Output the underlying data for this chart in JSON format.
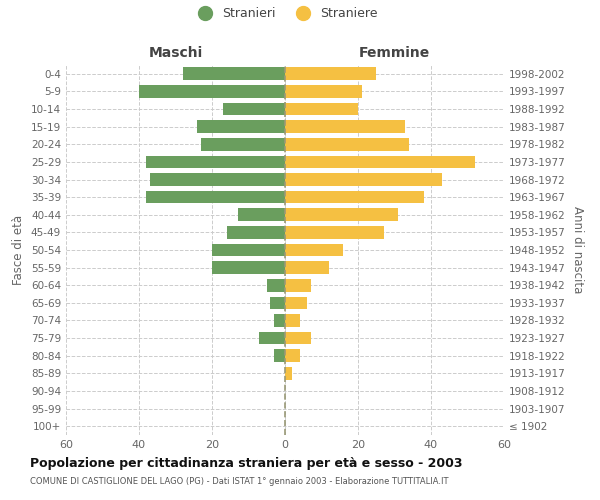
{
  "age_groups": [
    "100+",
    "95-99",
    "90-94",
    "85-89",
    "80-84",
    "75-79",
    "70-74",
    "65-69",
    "60-64",
    "55-59",
    "50-54",
    "45-49",
    "40-44",
    "35-39",
    "30-34",
    "25-29",
    "20-24",
    "15-19",
    "10-14",
    "5-9",
    "0-4"
  ],
  "birth_years": [
    "≤ 1902",
    "1903-1907",
    "1908-1912",
    "1913-1917",
    "1918-1922",
    "1923-1927",
    "1928-1932",
    "1933-1937",
    "1938-1942",
    "1943-1947",
    "1948-1952",
    "1953-1957",
    "1958-1962",
    "1963-1967",
    "1968-1972",
    "1973-1977",
    "1978-1982",
    "1983-1987",
    "1988-1992",
    "1993-1997",
    "1998-2002"
  ],
  "males": [
    0,
    0,
    0,
    0,
    3,
    7,
    3,
    4,
    5,
    20,
    20,
    16,
    13,
    38,
    37,
    38,
    23,
    24,
    17,
    40,
    28
  ],
  "females": [
    0,
    0,
    0,
    2,
    4,
    7,
    4,
    6,
    7,
    12,
    16,
    27,
    31,
    38,
    43,
    52,
    34,
    33,
    20,
    21,
    25
  ],
  "male_color": "#6a9e5e",
  "female_color": "#f5c042",
  "grid_color": "#cccccc",
  "center_line_color": "#999977",
  "xlim": 60,
  "title": "Popolazione per cittadinanza straniera per età e sesso - 2003",
  "subtitle": "COMUNE DI CASTIGLIONE DEL LAGO (PG) - Dati ISTAT 1° gennaio 2003 - Elaborazione TUTTITALIA.IT",
  "xlabel_left": "Maschi",
  "xlabel_right": "Femmine",
  "ylabel_left": "Fasce di età",
  "ylabel_right": "Anni di nascita",
  "legend_male": "Stranieri",
  "legend_female": "Straniere",
  "background_color": "#ffffff",
  "text_color": "#666666",
  "title_color": "#111111",
  "subtitle_color": "#555555"
}
